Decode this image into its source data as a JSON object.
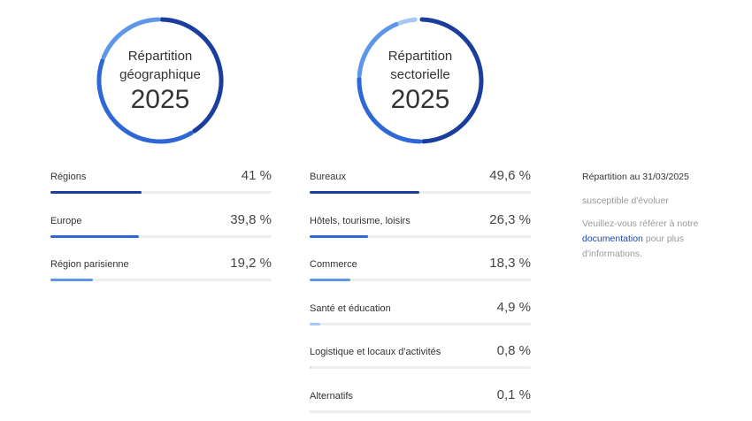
{
  "colors": {
    "dark": "#1b3e9e",
    "medium": "#2f67d6",
    "light": "#5e97ea",
    "pale": "#a8c7f2",
    "track": "#eeeeee"
  },
  "chart_data": [
    {
      "type": "pie",
      "title_line1": "Répartition",
      "title_line2": "géographique",
      "year": "2025",
      "categories": [
        "Régions",
        "Europe",
        "Région parisienne"
      ],
      "values": [
        41,
        39.8,
        19.2
      ],
      "value_labels": [
        "41 %",
        "39,8 %",
        "19,2 %"
      ],
      "colors": [
        "#1b3e9e",
        "#2f67d6",
        "#5e97ea"
      ]
    },
    {
      "type": "pie",
      "title_line1": "Répartition",
      "title_line2": "sectorielle",
      "year": "2025",
      "categories": [
        "Bureaux",
        "Hôtels, tourisme, loisirs",
        "Commerce",
        "Santé et éducation",
        "Logistique et locaux d'activités",
        "Alternatifs"
      ],
      "values": [
        49.6,
        26.3,
        18.3,
        4.9,
        0.8,
        0.1
      ],
      "value_labels": [
        "49,6 %",
        "26,3 %",
        "18,3 %",
        "4,9 %",
        "0,8 %",
        "0,1 %"
      ],
      "colors": [
        "#1b3e9e",
        "#2f67d6",
        "#5e97ea",
        "#a8c7f2",
        "#c9dcf7",
        "#dbe7f9"
      ]
    }
  ],
  "note": {
    "title": "Répartition au 31/03/2025",
    "subtitle": "susceptible d'évoluer",
    "text_before": "Veuillez-vous référer à notre ",
    "link": "documentation",
    "text_after": " pour plus d'informations."
  }
}
